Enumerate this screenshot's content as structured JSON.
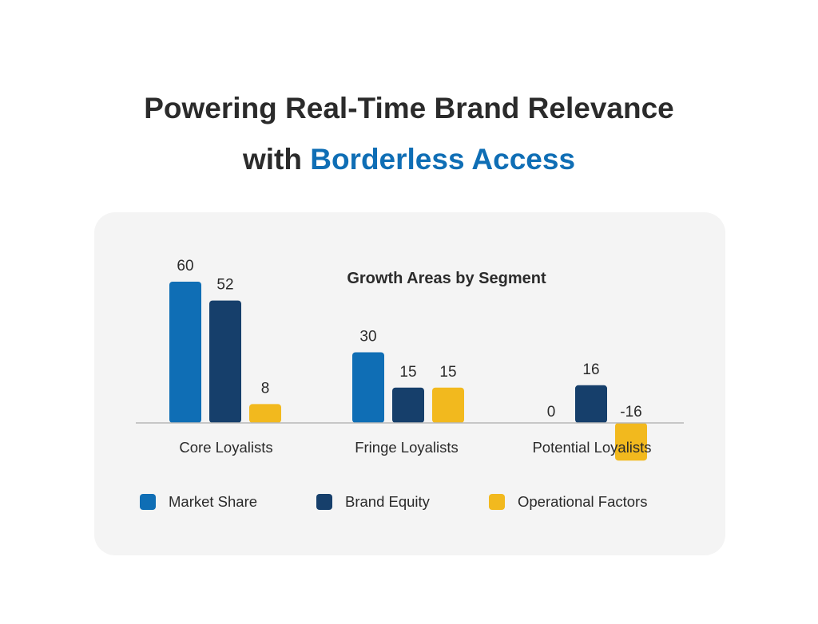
{
  "headline": {
    "line1": "Powering Real-Time Brand Relevance",
    "line2_prefix": "with ",
    "line2_accent": "Borderless Access"
  },
  "colors": {
    "accent": "#0f6eb5",
    "market_share": "#0f6eb5",
    "brand_equity": "#163f6b",
    "operational_factors": "#f2b91e"
  },
  "chart_data": {
    "type": "bar",
    "title": "Growth Areas by Segment",
    "categories": [
      "Core Loyalists",
      "Fringe Loyalists",
      "Potential Loyalists"
    ],
    "series": [
      {
        "name": "Market Share",
        "values": [
          60,
          30,
          0
        ]
      },
      {
        "name": "Brand Equity",
        "values": [
          52,
          15,
          16
        ]
      },
      {
        "name": "Operational Factors",
        "values": [
          8,
          15,
          -16
        ]
      }
    ],
    "data_labels": true,
    "grid": false,
    "legend": "bottom"
  },
  "legend": {
    "items": [
      {
        "label": "Market Share",
        "color": "#0f6eb5"
      },
      {
        "label": "Brand Equity",
        "color": "#163f6b"
      },
      {
        "label": "Operational Factors",
        "color": "#f2b91e"
      }
    ]
  }
}
